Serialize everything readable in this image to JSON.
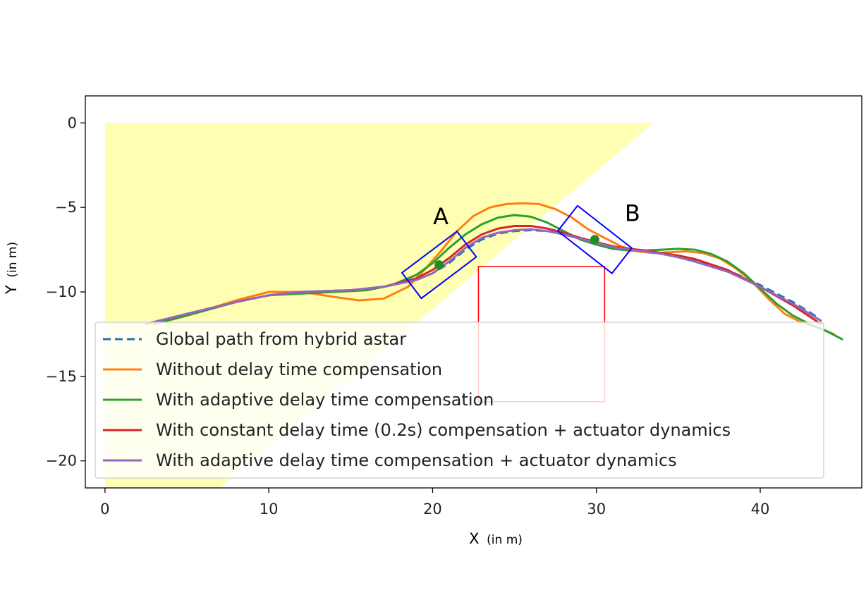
{
  "chart_data": {
    "type": "line",
    "xlabel": "X",
    "xlabel_unit": "(in m)",
    "ylabel": "Y",
    "ylabel_unit": "(in m)",
    "xlim": [
      -1.2,
      46.2
    ],
    "ylim": [
      -21.6,
      1.6
    ],
    "xticks": [
      0,
      10,
      20,
      30,
      40
    ],
    "yticks": [
      0,
      -5,
      -10,
      -15,
      -20
    ],
    "grid": false,
    "legend_position": "lower-right",
    "colors": {
      "global": "#1f77b4",
      "without": "#ff7f0e",
      "adaptive": "#2ca02c",
      "constant": "#d62728",
      "adaptive_actuator": "#9467bd",
      "region": "#ffff99",
      "vehicle_box": "#0000ff",
      "obstacle": "#ff0000"
    },
    "series": [
      {
        "key": "global",
        "name": "Global path from hybrid astar",
        "style": "dashed",
        "x": [
          2.5,
          5,
          8,
          10,
          12,
          15,
          17,
          19,
          20,
          21,
          22,
          23,
          24,
          25,
          26,
          27,
          28,
          29,
          30,
          31,
          32,
          33,
          34,
          35,
          36,
          38,
          40,
          42,
          43.5
        ],
        "y": [
          -11.9,
          -11.3,
          -10.6,
          -10.2,
          -10.0,
          -9.9,
          -9.7,
          -9.3,
          -8.9,
          -8.3,
          -7.5,
          -6.9,
          -6.55,
          -6.4,
          -6.35,
          -6.4,
          -6.6,
          -6.85,
          -7.1,
          -7.3,
          -7.5,
          -7.6,
          -7.75,
          -7.9,
          -8.1,
          -8.7,
          -9.6,
          -10.6,
          -11.5
        ]
      },
      {
        "key": "without",
        "name": "Without delay time compensation",
        "style": "solid",
        "x": [
          3,
          5,
          8,
          10,
          12,
          14,
          15.5,
          17,
          18.5,
          19.5,
          20.5,
          21.5,
          22.5,
          23.5,
          24.5,
          25.5,
          26.5,
          27.5,
          28.5,
          29.5,
          30.5,
          31.5,
          32.5,
          33.5,
          34.5,
          35.5,
          36.5,
          37.5,
          38.5,
          39.5,
          40.5,
          41.5,
          42.5,
          43.5,
          44.5
        ],
        "y": [
          -11.9,
          -11.4,
          -10.5,
          -10.0,
          -10.0,
          -10.3,
          -10.5,
          -10.4,
          -9.7,
          -8.7,
          -7.6,
          -6.4,
          -5.5,
          -5.0,
          -4.8,
          -4.75,
          -4.8,
          -5.1,
          -5.6,
          -6.3,
          -6.8,
          -7.3,
          -7.6,
          -7.7,
          -7.65,
          -7.6,
          -7.7,
          -8.0,
          -8.6,
          -9.4,
          -10.4,
          -11.3,
          -11.8,
          -12.1,
          -12.5
        ]
      },
      {
        "key": "adaptive",
        "name": "With adaptive delay time compensation",
        "style": "solid",
        "x": [
          3,
          5,
          8,
          10,
          12,
          14,
          16,
          17.5,
          19,
          20,
          21,
          22,
          23,
          24,
          25,
          26,
          27,
          28,
          29,
          30,
          31,
          32,
          33,
          34,
          35,
          36,
          37,
          38,
          39,
          40,
          41,
          42,
          43,
          44,
          45
        ],
        "y": [
          -11.9,
          -11.4,
          -10.6,
          -10.2,
          -10.1,
          -10.0,
          -9.9,
          -9.6,
          -9.0,
          -8.3,
          -7.4,
          -6.6,
          -6.0,
          -5.6,
          -5.45,
          -5.55,
          -5.9,
          -6.4,
          -6.9,
          -7.2,
          -7.45,
          -7.55,
          -7.55,
          -7.5,
          -7.45,
          -7.5,
          -7.75,
          -8.2,
          -8.9,
          -9.8,
          -10.7,
          -11.4,
          -11.9,
          -12.3,
          -12.8
        ]
      },
      {
        "key": "constant",
        "name": "With constant delay time (0.2s) compensation + actuator dynamics",
        "style": "solid",
        "x": [
          2.5,
          5,
          8,
          10,
          12,
          15,
          17,
          19,
          20,
          21,
          22,
          23,
          24,
          25,
          26,
          27,
          28,
          29,
          30,
          31,
          32,
          33,
          34,
          35,
          36,
          38,
          40,
          42,
          43.7
        ],
        "y": [
          -11.9,
          -11.3,
          -10.6,
          -10.2,
          -10.0,
          -9.9,
          -9.7,
          -9.2,
          -8.7,
          -8.0,
          -7.2,
          -6.6,
          -6.25,
          -6.1,
          -6.1,
          -6.25,
          -6.5,
          -6.8,
          -7.05,
          -7.3,
          -7.45,
          -7.55,
          -7.7,
          -7.85,
          -8.05,
          -8.7,
          -9.7,
          -10.8,
          -11.9
        ]
      },
      {
        "key": "adaptive_actuator",
        "name": "With adaptive delay time compensation + actuator dynamics",
        "style": "solid",
        "x": [
          2.5,
          5,
          8,
          10,
          12,
          15,
          17,
          19,
          20,
          21,
          22,
          23,
          24,
          25,
          26,
          27,
          28,
          29,
          30,
          31,
          32,
          33,
          34,
          35,
          36,
          38,
          40,
          42,
          43.7
        ],
        "y": [
          -11.9,
          -11.3,
          -10.6,
          -10.2,
          -10.0,
          -9.9,
          -9.7,
          -9.3,
          -8.9,
          -8.2,
          -7.4,
          -6.8,
          -6.5,
          -6.35,
          -6.3,
          -6.4,
          -6.6,
          -6.85,
          -7.1,
          -7.35,
          -7.5,
          -7.6,
          -7.75,
          -7.95,
          -8.2,
          -8.8,
          -9.7,
          -10.7,
          -11.7
        ]
      }
    ],
    "annotations": [
      {
        "text": "A",
        "x": 20.5,
        "y": -6.0
      },
      {
        "text": "B",
        "x": 32.2,
        "y": -5.8
      }
    ],
    "vehicles": [
      {
        "label": "A",
        "cx": 20.4,
        "cy": -8.4,
        "length": 4.2,
        "width": 1.9,
        "angle_deg": 37
      },
      {
        "label": "B",
        "cx": 29.9,
        "cy": -6.9,
        "length": 4.2,
        "width": 1.9,
        "angle_deg": -38
      }
    ],
    "region": {
      "points": [
        [
          0,
          0
        ],
        [
          33.5,
          0
        ],
        [
          7,
          -21.6
        ],
        [
          0,
          -21.6
        ]
      ]
    },
    "obstacle": {
      "x0": 22.8,
      "x1": 30.5,
      "y0": -16.5,
      "y1": -8.5
    }
  }
}
